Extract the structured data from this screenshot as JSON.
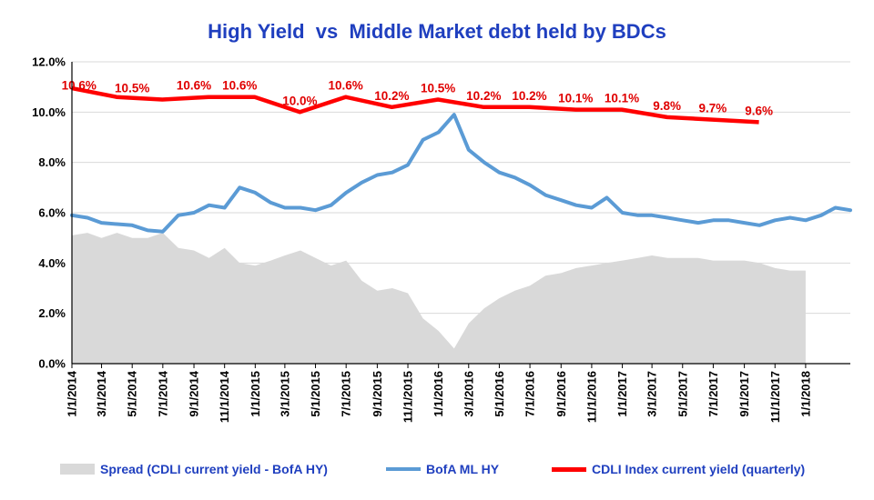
{
  "chart_data": {
    "type": "line",
    "title": "High Yield  vs  Middle Market debt held by BDCs",
    "ylim": [
      0,
      12
    ],
    "y_ticks": [
      "0.0%",
      "2.0%",
      "4.0%",
      "6.0%",
      "8.0%",
      "10.0%",
      "12.0%"
    ],
    "x_ticks": [
      "1/1/2014",
      "3/1/2014",
      "5/1/2014",
      "7/1/2014",
      "9/1/2014",
      "11/1/2014",
      "1/1/2015",
      "3/1/2015",
      "5/1/2015",
      "7/1/2015",
      "9/1/2015",
      "11/1/2015",
      "1/1/2016",
      "3/1/2016",
      "5/1/2016",
      "7/1/2016",
      "9/1/2016",
      "11/1/2016",
      "1/1/2017",
      "3/1/2017",
      "5/1/2017",
      "7/1/2017",
      "9/1/2017",
      "11/1/2017",
      "1/1/2018"
    ],
    "x_range": [
      "2014-01-01",
      "2018-03-31"
    ],
    "grid": "horizontal",
    "legend_position": "bottom",
    "series": [
      {
        "name": "Spread (CDLI current yield - BofA HY)",
        "kind": "area",
        "color": "#d9d9d9",
        "points": [
          [
            "2014-01-01",
            5.1
          ],
          [
            "2014-02-01",
            5.2
          ],
          [
            "2014-03-01",
            5.0
          ],
          [
            "2014-04-01",
            5.2
          ],
          [
            "2014-05-01",
            5.0
          ],
          [
            "2014-06-01",
            5.0
          ],
          [
            "2014-07-01",
            5.2
          ],
          [
            "2014-08-01",
            4.6
          ],
          [
            "2014-09-01",
            4.5
          ],
          [
            "2014-10-01",
            4.2
          ],
          [
            "2014-11-01",
            4.6
          ],
          [
            "2014-12-01",
            4.0
          ],
          [
            "2015-01-01",
            3.9
          ],
          [
            "2015-02-01",
            4.1
          ],
          [
            "2015-03-01",
            4.3
          ],
          [
            "2015-04-01",
            4.5
          ],
          [
            "2015-05-01",
            4.2
          ],
          [
            "2015-06-01",
            3.9
          ],
          [
            "2015-07-01",
            4.1
          ],
          [
            "2015-08-01",
            3.3
          ],
          [
            "2015-09-01",
            2.9
          ],
          [
            "2015-10-01",
            3.0
          ],
          [
            "2015-11-01",
            2.8
          ],
          [
            "2015-12-01",
            1.8
          ],
          [
            "2016-01-01",
            1.3
          ],
          [
            "2016-02-01",
            0.6
          ],
          [
            "2016-03-01",
            1.6
          ],
          [
            "2016-04-01",
            2.2
          ],
          [
            "2016-05-01",
            2.6
          ],
          [
            "2016-06-01",
            2.9
          ],
          [
            "2016-07-01",
            3.1
          ],
          [
            "2016-08-01",
            3.5
          ],
          [
            "2016-09-01",
            3.6
          ],
          [
            "2016-10-01",
            3.8
          ],
          [
            "2016-11-01",
            3.9
          ],
          [
            "2016-12-01",
            4.0
          ],
          [
            "2017-01-01",
            4.1
          ],
          [
            "2017-02-01",
            4.2
          ],
          [
            "2017-03-01",
            4.3
          ],
          [
            "2017-04-01",
            4.2
          ],
          [
            "2017-05-01",
            4.2
          ],
          [
            "2017-06-01",
            4.2
          ],
          [
            "2017-07-01",
            4.1
          ],
          [
            "2017-08-01",
            4.1
          ],
          [
            "2017-09-01",
            4.1
          ],
          [
            "2017-10-01",
            4.0
          ],
          [
            "2017-11-01",
            3.8
          ],
          [
            "2017-12-01",
            3.7
          ],
          [
            "2018-01-01",
            3.7
          ]
        ]
      },
      {
        "name": "BofA ML HY",
        "kind": "line",
        "color": "#5b9bd5",
        "points": [
          [
            "2014-01-01",
            5.9
          ],
          [
            "2014-02-01",
            5.8
          ],
          [
            "2014-03-01",
            5.6
          ],
          [
            "2014-04-01",
            5.55
          ],
          [
            "2014-05-01",
            5.5
          ],
          [
            "2014-06-01",
            5.3
          ],
          [
            "2014-07-01",
            5.25
          ],
          [
            "2014-08-01",
            5.9
          ],
          [
            "2014-09-01",
            6.0
          ],
          [
            "2014-10-01",
            6.3
          ],
          [
            "2014-11-01",
            6.2
          ],
          [
            "2014-12-01",
            7.0
          ],
          [
            "2015-01-01",
            6.8
          ],
          [
            "2015-02-01",
            6.4
          ],
          [
            "2015-03-01",
            6.2
          ],
          [
            "2015-04-01",
            6.2
          ],
          [
            "2015-05-01",
            6.1
          ],
          [
            "2015-06-01",
            6.3
          ],
          [
            "2015-07-01",
            6.8
          ],
          [
            "2015-08-01",
            7.2
          ],
          [
            "2015-09-01",
            7.5
          ],
          [
            "2015-10-01",
            7.6
          ],
          [
            "2015-11-01",
            7.9
          ],
          [
            "2015-12-01",
            8.9
          ],
          [
            "2016-01-01",
            9.2
          ],
          [
            "2016-02-01",
            9.9
          ],
          [
            "2016-03-01",
            8.5
          ],
          [
            "2016-04-01",
            8.0
          ],
          [
            "2016-05-01",
            7.6
          ],
          [
            "2016-06-01",
            7.4
          ],
          [
            "2016-07-01",
            7.1
          ],
          [
            "2016-08-01",
            6.7
          ],
          [
            "2016-09-01",
            6.5
          ],
          [
            "2016-10-01",
            6.3
          ],
          [
            "2016-11-01",
            6.2
          ],
          [
            "2016-12-01",
            6.6
          ],
          [
            "2017-01-01",
            6.0
          ],
          [
            "2017-02-01",
            5.9
          ],
          [
            "2017-03-01",
            5.9
          ],
          [
            "2017-04-01",
            5.8
          ],
          [
            "2017-05-01",
            5.7
          ],
          [
            "2017-06-01",
            5.6
          ],
          [
            "2017-07-01",
            5.7
          ],
          [
            "2017-08-01",
            5.7
          ],
          [
            "2017-09-01",
            5.6
          ],
          [
            "2017-10-01",
            5.5
          ],
          [
            "2017-11-01",
            5.7
          ],
          [
            "2017-12-01",
            5.8
          ],
          [
            "2018-01-01",
            5.7
          ],
          [
            "2018-02-01",
            5.9
          ],
          [
            "2018-03-01",
            6.2
          ],
          [
            "2018-03-31",
            6.1
          ]
        ]
      },
      {
        "name": "CDLI Index current yield (quarterly)",
        "kind": "line",
        "color": "#ff0000",
        "points": [
          [
            "2014-01-01",
            10.95
          ],
          [
            "2014-03-31",
            10.6
          ],
          [
            "2014-06-30",
            10.5
          ],
          [
            "2014-09-30",
            10.6
          ],
          [
            "2014-12-31",
            10.6
          ],
          [
            "2015-03-31",
            10.0
          ],
          [
            "2015-06-30",
            10.6
          ],
          [
            "2015-09-30",
            10.2
          ],
          [
            "2015-12-31",
            10.5
          ],
          [
            "2016-03-31",
            10.2
          ],
          [
            "2016-06-30",
            10.2
          ],
          [
            "2016-09-30",
            10.1
          ],
          [
            "2016-12-31",
            10.1
          ],
          [
            "2017-03-31",
            9.8
          ],
          [
            "2017-06-30",
            9.7
          ],
          [
            "2017-09-30",
            9.6
          ]
        ],
        "data_labels": [
          {
            "date": "2014-01-15",
            "value": 10.6,
            "label": "10.6%"
          },
          {
            "date": "2014-05-01",
            "value": 10.5,
            "label": "10.5%"
          },
          {
            "date": "2014-09-01",
            "value": 10.6,
            "label": "10.6%"
          },
          {
            "date": "2014-12-01",
            "value": 10.6,
            "label": "10.6%"
          },
          {
            "date": "2015-03-31",
            "value": 10.0,
            "label": "10.0%"
          },
          {
            "date": "2015-06-30",
            "value": 10.6,
            "label": "10.6%"
          },
          {
            "date": "2015-09-30",
            "value": 10.2,
            "label": "10.2%"
          },
          {
            "date": "2015-12-31",
            "value": 10.5,
            "label": "10.5%"
          },
          {
            "date": "2016-03-31",
            "value": 10.2,
            "label": "10.2%"
          },
          {
            "date": "2016-06-30",
            "value": 10.2,
            "label": "10.2%"
          },
          {
            "date": "2016-09-30",
            "value": 10.1,
            "label": "10.1%"
          },
          {
            "date": "2016-12-31",
            "value": 10.1,
            "label": "10.1%"
          },
          {
            "date": "2017-03-31",
            "value": 9.8,
            "label": "9.8%"
          },
          {
            "date": "2017-06-30",
            "value": 9.7,
            "label": "9.7%"
          },
          {
            "date": "2017-09-30",
            "value": 9.6,
            "label": "9.6%"
          }
        ]
      }
    ]
  }
}
